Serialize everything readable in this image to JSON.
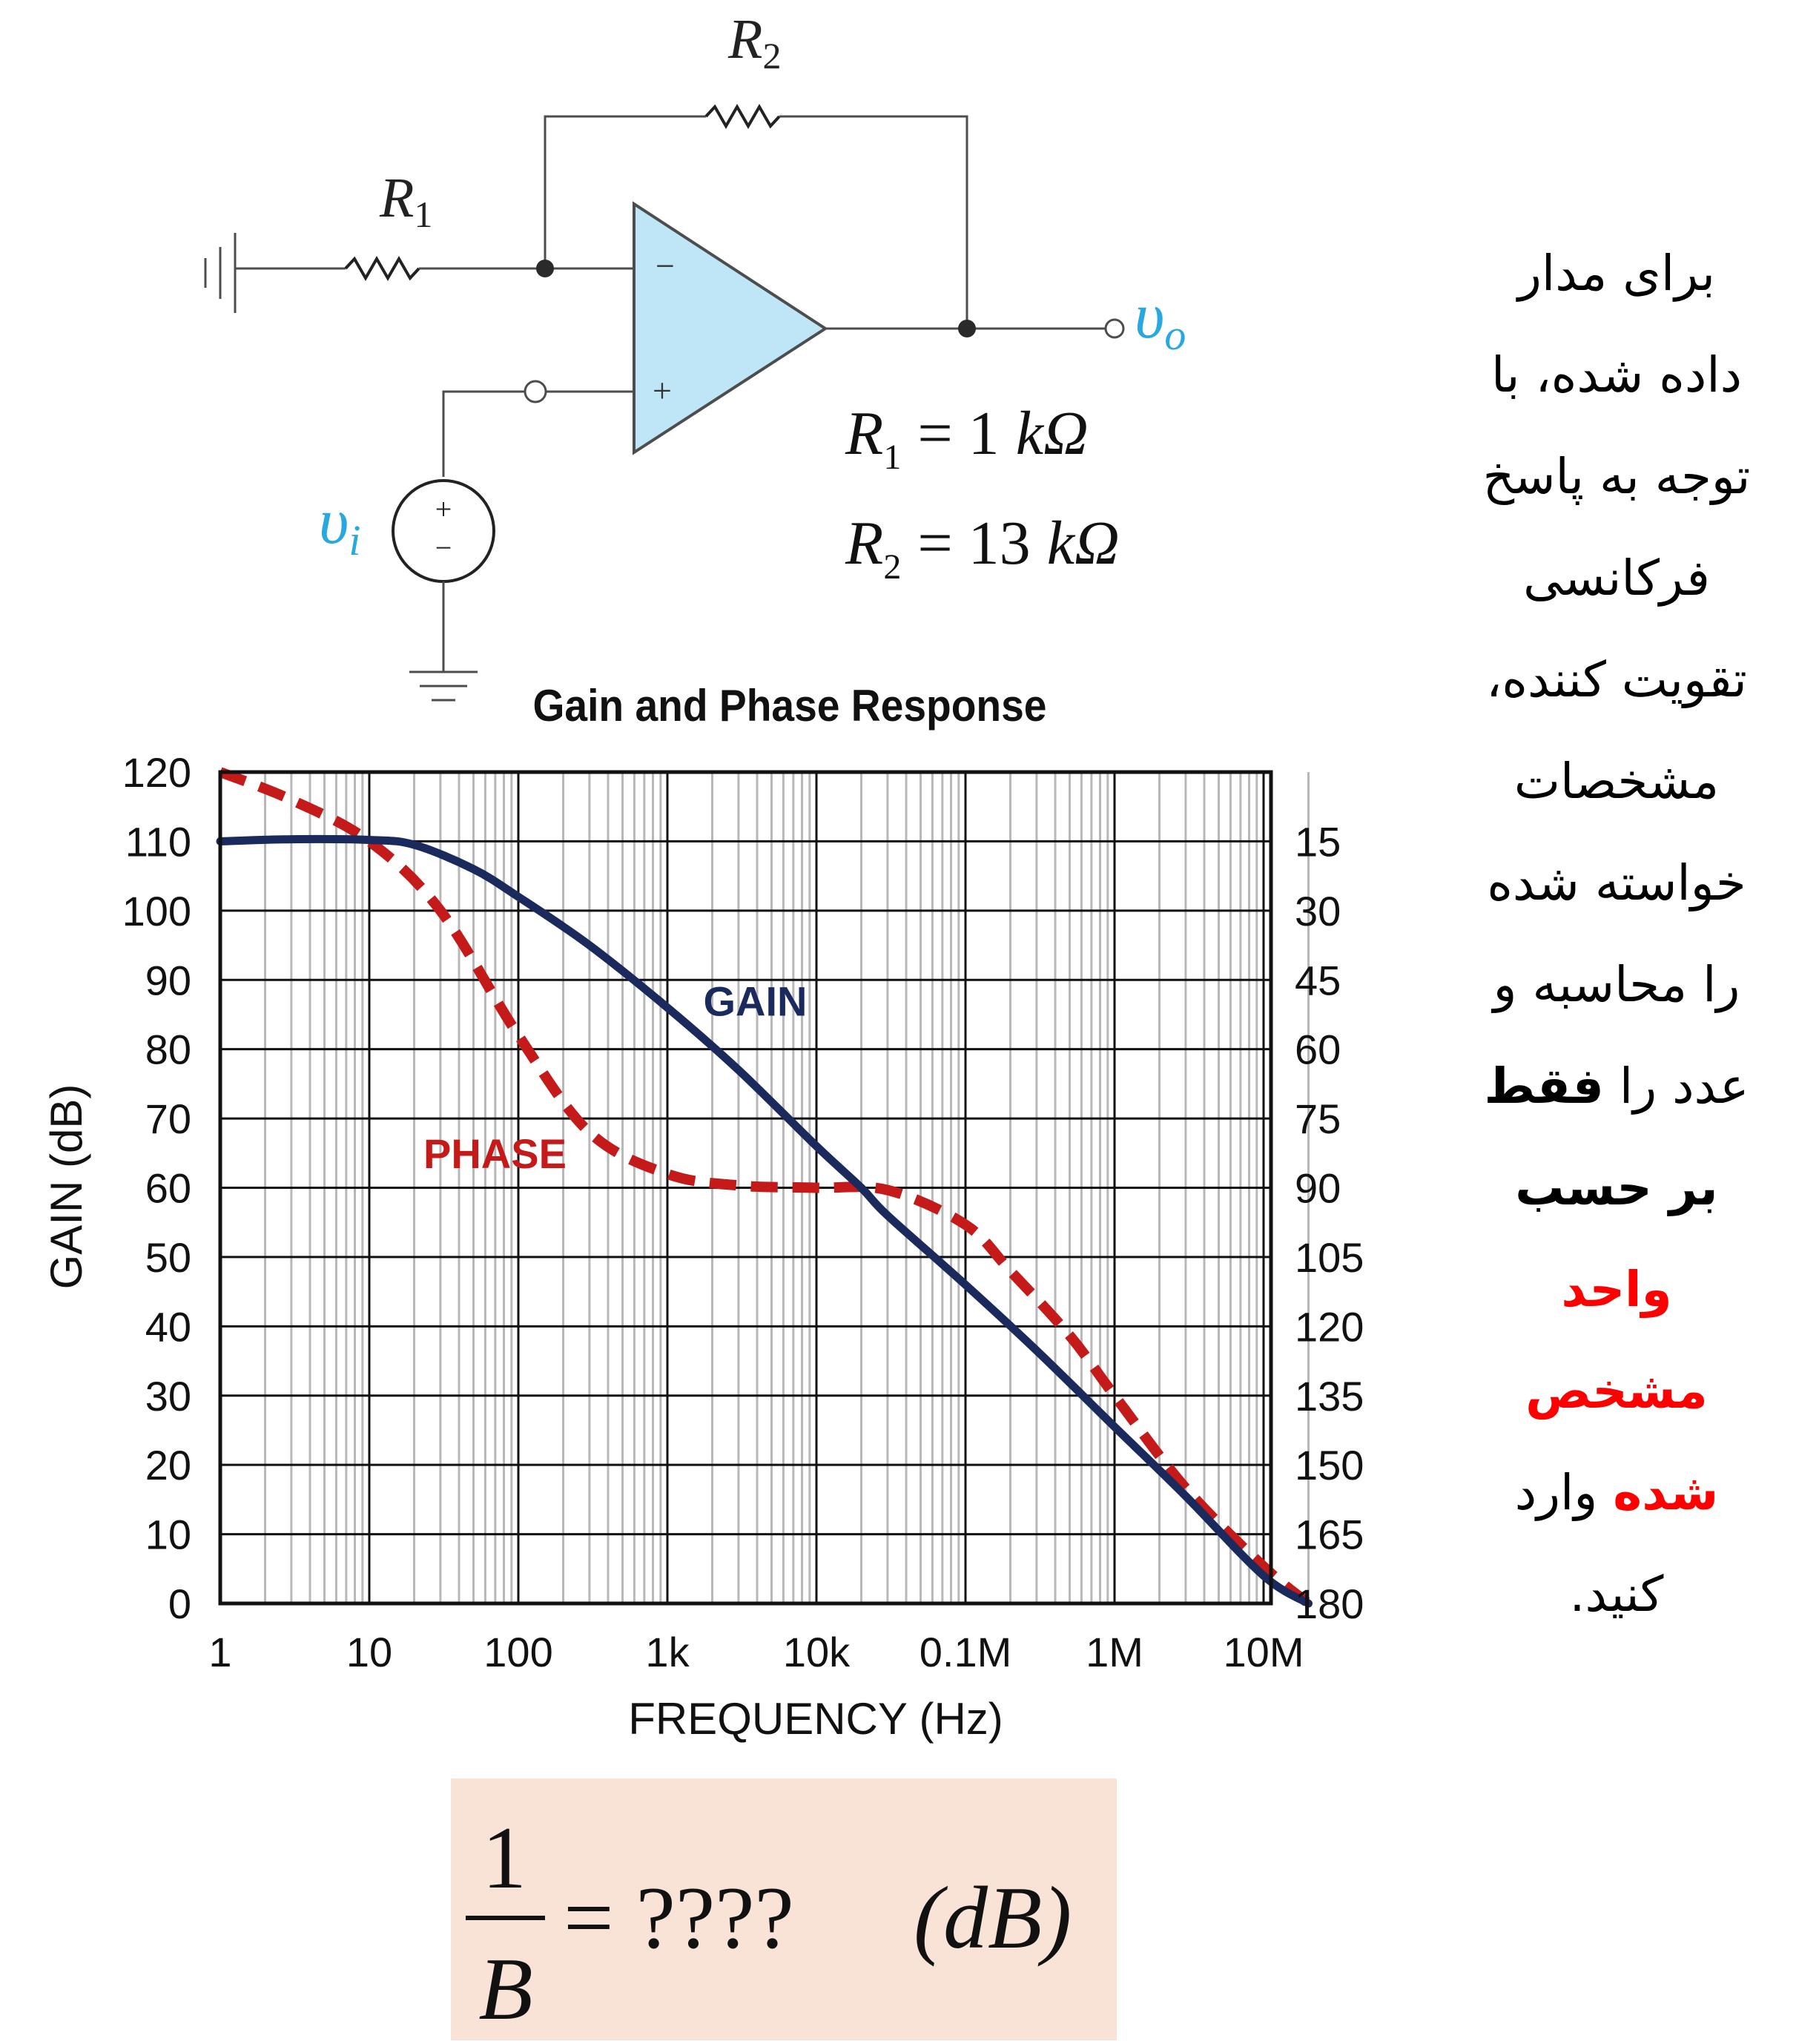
{
  "circuit": {
    "r1_label": "R",
    "r1_sub": "1",
    "r2_label": "R",
    "r2_sub": "2",
    "vi_label": "υ",
    "vi_sub": "i",
    "vo_label": "υ",
    "vo_sub": "o",
    "minus_sign": "−",
    "plus_sign": "+",
    "source_plus": "+",
    "source_minus": "−",
    "r1_value": {
      "symbol": "R",
      "sub": "1",
      "eq": "= 1",
      "unit": "kΩ"
    },
    "r2_value": {
      "symbol": "R",
      "sub": "2",
      "eq": "= 13",
      "unit": "kΩ"
    }
  },
  "question": {
    "lines": [
      "برای مدار",
      "داده شده، با",
      "توجه به پاسخ",
      "فرکانسی",
      "تقویت کننده،",
      "مشخصات",
      "خواسته شده",
      "را محاسبه و"
    ],
    "line9_pre": "عدد را",
    "line9_bold": "فقط",
    "line10_bold": "بر حسب",
    "line11_red": "واحد",
    "line12_red": "مشخص",
    "line13_red": "شده",
    "line13_post": "وارد",
    "line14": "کنید."
  },
  "answer": {
    "numerator": "1",
    "denominator": "B",
    "rhs": "= ????",
    "unit": "(dB)"
  },
  "colors": {
    "gain": "#1b2a5c",
    "phase": "#c41a1a",
    "accent_blue": "#29a8e0",
    "opamp_fill": "#bfe6f7",
    "answer_bg": "#f9e3d6",
    "red_text": "#ff0000"
  },
  "chart_data": {
    "type": "line",
    "title": "Gain and Phase Response",
    "xlabel": "FREQUENCY (Hz)",
    "ylabel": "GAIN (dB)",
    "xscale": "log",
    "xlim": [
      1,
      20000000
    ],
    "ylim": [
      0,
      120
    ],
    "grid": true,
    "x_tick_values": [
      1,
      10,
      100,
      1000,
      10000,
      100000,
      1000000,
      10000000
    ],
    "x_tick_labels": [
      "1",
      "10",
      "100",
      "1k",
      "10k",
      "0.1M",
      "1M",
      "10M"
    ],
    "y_ticks": [
      0,
      10,
      20,
      30,
      40,
      50,
      60,
      70,
      80,
      90,
      100,
      110,
      120
    ],
    "y_tick_labels": [
      "0",
      "10",
      "20",
      "30",
      "40",
      "50",
      "60",
      "70",
      "80",
      "90",
      "100",
      "110",
      "120"
    ],
    "y2_label_values": [
      15,
      30,
      45,
      60,
      75,
      90,
      105,
      120,
      135,
      150,
      165,
      180
    ],
    "y2_tick_labels": [
      "15",
      "30",
      "45",
      "60",
      "75",
      "90",
      "105",
      "120",
      "135",
      "150",
      "165",
      "180"
    ],
    "y2_note": "phase lag in degrees, 0 at top (120 dB line) to 180 at bottom (0 dB line)",
    "series": [
      {
        "name": "GAIN",
        "style": "solid",
        "color": "#1b2a5c",
        "x": [
          1,
          3,
          10,
          20,
          50,
          100,
          300,
          1000,
          3000,
          10000,
          20000,
          30000,
          100000,
          300000,
          1000000,
          3000000,
          10000000,
          20000000
        ],
        "y": [
          110,
          110.3,
          110.2,
          109.5,
          106,
          102,
          95,
          86,
          77,
          66,
          60,
          56,
          46,
          36.5,
          25.5,
          15.5,
          4,
          0
        ]
      },
      {
        "name": "PHASE",
        "style": "dashed",
        "color": "#c41a1a",
        "x": [
          1,
          3,
          10,
          30,
          100,
          300,
          1000,
          3000,
          10000,
          30000,
          100000,
          200000,
          500000,
          1000000,
          3000000,
          10000000,
          20000000
        ],
        "y": [
          0,
          6,
          15,
          30,
          57,
          78,
          87,
          89.5,
          90,
          90.5,
          98,
          108,
          122,
          135,
          155,
          172,
          180
        ]
      }
    ],
    "annotations": [
      {
        "text": "GAIN",
        "x": 2000,
        "y": 87
      },
      {
        "text": "PHASE",
        "x": 100,
        "y": 65
      }
    ]
  }
}
